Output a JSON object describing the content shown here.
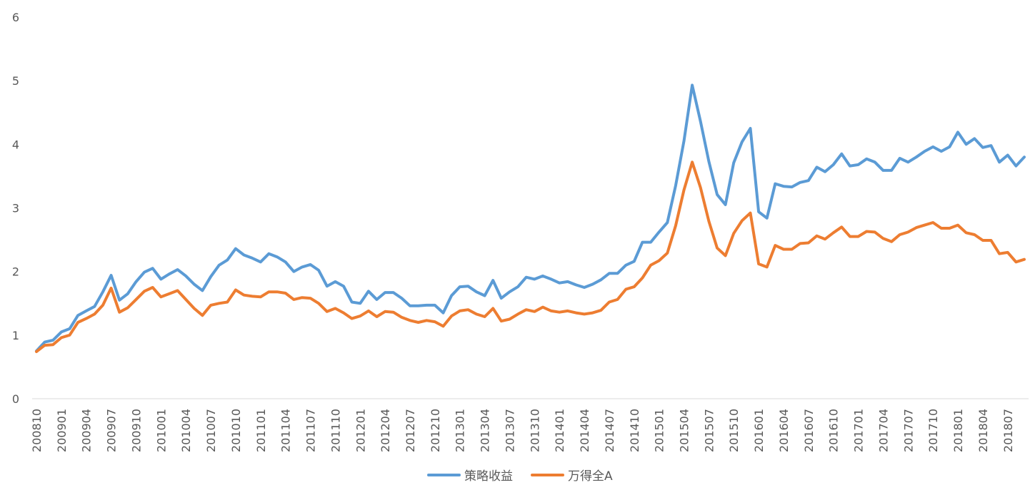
{
  "chart_data": {
    "type": "line",
    "title": "",
    "xlabel": "",
    "ylabel": "",
    "ylim": [
      0,
      6
    ],
    "yticks": [
      0,
      1,
      2,
      3,
      4,
      5,
      6
    ],
    "grid": false,
    "legend_position": "bottom",
    "x": [
      "200810",
      "200811",
      "200812",
      "200901",
      "200902",
      "200903",
      "200904",
      "200905",
      "200906",
      "200907",
      "200908",
      "200909",
      "200910",
      "200911",
      "200912",
      "201001",
      "201002",
      "201003",
      "201004",
      "201005",
      "201006",
      "201007",
      "201008",
      "201009",
      "201010",
      "201011",
      "201012",
      "201101",
      "201102",
      "201103",
      "201104",
      "201105",
      "201106",
      "201107",
      "201108",
      "201109",
      "201110",
      "201111",
      "201112",
      "201201",
      "201202",
      "201203",
      "201204",
      "201205",
      "201206",
      "201207",
      "201208",
      "201209",
      "201210",
      "201211",
      "201212",
      "201301",
      "201302",
      "201303",
      "201304",
      "201305",
      "201306",
      "201307",
      "201308",
      "201309",
      "201310",
      "201311",
      "201312",
      "201401",
      "201402",
      "201403",
      "201404",
      "201405",
      "201406",
      "201407",
      "201408",
      "201409",
      "201410",
      "201411",
      "201412",
      "201501",
      "201502",
      "201503",
      "201504",
      "201505",
      "201506",
      "201507",
      "201508",
      "201509",
      "201510",
      "201511",
      "201512",
      "201601",
      "201602",
      "201603",
      "201604",
      "201605",
      "201606",
      "201607",
      "201608",
      "201609",
      "201610",
      "201611",
      "201612",
      "201701",
      "201702",
      "201703",
      "201704",
      "201705",
      "201706",
      "201707",
      "201708",
      "201709",
      "201710",
      "201711",
      "201712",
      "201801",
      "201802",
      "201803",
      "201804",
      "201805",
      "201806",
      "201807",
      "201808",
      "201809"
    ],
    "xtick_labels": [
      "200810",
      "200901",
      "200904",
      "200907",
      "200910",
      "201001",
      "201004",
      "201007",
      "201010",
      "201101",
      "201104",
      "201107",
      "201110",
      "201201",
      "201204",
      "201207",
      "201210",
      "201301",
      "201304",
      "201307",
      "201310",
      "201401",
      "201404",
      "201407",
      "201410",
      "201501",
      "201504",
      "201507",
      "201510",
      "201601",
      "201604",
      "201607",
      "201610",
      "201701",
      "201704",
      "201707",
      "201710",
      "201801",
      "201804",
      "201807"
    ],
    "series": [
      {
        "name": "策略收益",
        "color": "#5B9BD5",
        "values": [
          0.75,
          0.89,
          0.92,
          1.05,
          1.1,
          1.31,
          1.38,
          1.45,
          1.68,
          1.94,
          1.55,
          1.65,
          1.84,
          1.99,
          2.05,
          1.88,
          1.96,
          2.03,
          1.93,
          1.8,
          1.7,
          1.92,
          2.1,
          2.18,
          2.36,
          2.26,
          2.21,
          2.15,
          2.28,
          2.23,
          2.15,
          2.0,
          2.07,
          2.11,
          2.02,
          1.77,
          1.84,
          1.77,
          1.52,
          1.5,
          1.69,
          1.56,
          1.67,
          1.67,
          1.58,
          1.46,
          1.46,
          1.47,
          1.47,
          1.35,
          1.62,
          1.76,
          1.77,
          1.68,
          1.62,
          1.86,
          1.58,
          1.68,
          1.76,
          1.91,
          1.88,
          1.93,
          1.88,
          1.82,
          1.84,
          1.79,
          1.75,
          1.8,
          1.87,
          1.97,
          1.97,
          2.1,
          2.16,
          2.46,
          2.46,
          2.62,
          2.77,
          3.35,
          4.05,
          4.93,
          4.36,
          3.73,
          3.21,
          3.05,
          3.71,
          4.04,
          4.25,
          2.94,
          2.84,
          3.38,
          3.34,
          3.33,
          3.4,
          3.43,
          3.64,
          3.57,
          3.68,
          3.85,
          3.66,
          3.68,
          3.77,
          3.72,
          3.59,
          3.59,
          3.78,
          3.72,
          3.8,
          3.89,
          3.96,
          3.89,
          3.96,
          4.19,
          4.0,
          4.09,
          3.95,
          3.98,
          3.72,
          3.83,
          3.66,
          3.8
        ]
      },
      {
        "name": "万得全A",
        "color": "#ED7D31",
        "values": [
          0.74,
          0.84,
          0.85,
          0.96,
          1.0,
          1.2,
          1.26,
          1.33,
          1.47,
          1.74,
          1.36,
          1.43,
          1.56,
          1.69,
          1.75,
          1.6,
          1.65,
          1.7,
          1.56,
          1.42,
          1.31,
          1.47,
          1.5,
          1.52,
          1.71,
          1.63,
          1.61,
          1.6,
          1.68,
          1.68,
          1.66,
          1.56,
          1.59,
          1.58,
          1.5,
          1.37,
          1.42,
          1.35,
          1.26,
          1.3,
          1.38,
          1.29,
          1.37,
          1.36,
          1.28,
          1.23,
          1.2,
          1.23,
          1.21,
          1.14,
          1.3,
          1.38,
          1.4,
          1.33,
          1.29,
          1.42,
          1.22,
          1.25,
          1.33,
          1.4,
          1.37,
          1.44,
          1.38,
          1.36,
          1.38,
          1.35,
          1.33,
          1.35,
          1.39,
          1.52,
          1.56,
          1.72,
          1.76,
          1.9,
          2.1,
          2.17,
          2.29,
          2.72,
          3.28,
          3.72,
          3.32,
          2.79,
          2.37,
          2.25,
          2.6,
          2.8,
          2.92,
          2.12,
          2.07,
          2.41,
          2.35,
          2.35,
          2.44,
          2.45,
          2.56,
          2.51,
          2.61,
          2.7,
          2.55,
          2.55,
          2.63,
          2.62,
          2.52,
          2.47,
          2.58,
          2.62,
          2.69,
          2.73,
          2.77,
          2.68,
          2.68,
          2.73,
          2.61,
          2.58,
          2.49,
          2.49,
          2.28,
          2.3,
          2.15,
          2.19
        ]
      }
    ]
  }
}
